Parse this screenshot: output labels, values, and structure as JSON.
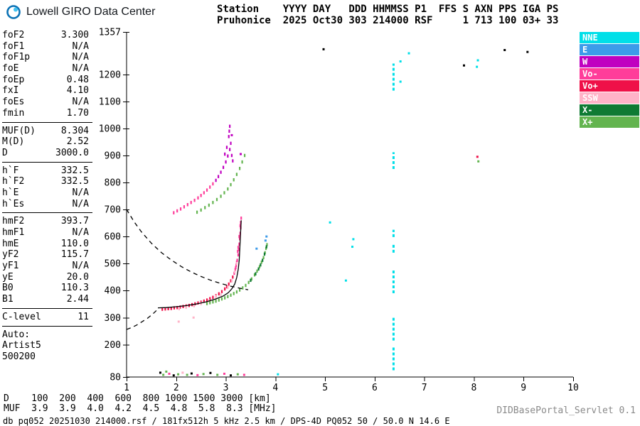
{
  "header": {
    "logo_text": "Lowell GIRO Data Center",
    "line1": "Station    YYYY DAY   DDD HHMMSS P1  FFS S AXN PPS IGA PS",
    "line2": "Pruhonice  2025 Oct30 303 214000 RSF     1 713 100 03+ 33"
  },
  "colors": {
    "NNE": "#00DFE8",
    "E": "#3D9BE9",
    "W": "#C000C0",
    "VoMinus": "#FF3D9A",
    "VoPlus": "#EF1048",
    "SSW": "#FFB3C8",
    "XMinus": "#0F7A33",
    "XPlus": "#63B44F",
    "black": "#000000"
  },
  "panel": {
    "groups": [
      {
        "rows": [
          {
            "label": "foF2",
            "value": "3.300"
          },
          {
            "label": "foF1",
            "value": "N/A"
          },
          {
            "label": "foF1p",
            "value": "N/A"
          },
          {
            "label": "foE",
            "value": "N/A"
          },
          {
            "label": "foEp",
            "value": "0.48"
          },
          {
            "label": "fxI",
            "value": "4.10"
          },
          {
            "label": "foEs",
            "value": "N/A"
          },
          {
            "label": "fmin",
            "value": "1.70"
          }
        ]
      },
      {
        "rows": [
          {
            "label": "MUF(D)",
            "value": "8.304"
          },
          {
            "label": "M(D)",
            "value": "2.52"
          },
          {
            "label": "D",
            "value": "3000.0"
          }
        ]
      },
      {
        "rows": [
          {
            "label": "h`F",
            "value": "332.5"
          },
          {
            "label": "h`F2",
            "value": "332.5"
          },
          {
            "label": "h`E",
            "value": "N/A"
          },
          {
            "label": "h`Es",
            "value": "N/A"
          }
        ]
      },
      {
        "rows": [
          {
            "label": "hmF2",
            "value": "393.7"
          },
          {
            "label": "hmF1",
            "value": "N/A"
          },
          {
            "label": "hmE",
            "value": "110.0"
          },
          {
            "label": "yF2",
            "value": "115.7"
          },
          {
            "label": "yF1",
            "value": "N/A"
          },
          {
            "label": "yE",
            "value": "20.0"
          },
          {
            "label": "B0",
            "value": "110.3"
          },
          {
            "label": "B1",
            "value": "2.44"
          }
        ]
      },
      {
        "rows": [
          {
            "label": "C-level",
            "value": "11"
          }
        ]
      },
      {
        "lines": [
          "Auto:",
          "Artist5",
          "500200"
        ]
      }
    ]
  },
  "legend": {
    "items": [
      {
        "label": "NNE",
        "color": "NNE"
      },
      {
        "label": "E",
        "color": "E"
      },
      {
        "label": "W",
        "color": "W"
      },
      {
        "label": "Vo-",
        "color": "VoMinus"
      },
      {
        "label": "Vo+",
        "color": "VoPlus"
      },
      {
        "label": "SSW",
        "color": "SSW"
      },
      {
        "label": "X-",
        "color": "XMinus"
      },
      {
        "label": "X+",
        "color": "XPlus"
      }
    ]
  },
  "chart_data": {
    "type": "scatter",
    "x_unit": "MHz",
    "y_unit": "km",
    "xlim": [
      1,
      10
    ],
    "ylim": [
      80,
      1357
    ],
    "x_ticks": [
      1,
      2,
      3,
      4,
      5,
      6,
      7,
      8,
      9,
      10
    ],
    "y_ticks": [
      1357,
      1200,
      1100,
      1000,
      900,
      800,
      700,
      600,
      500,
      400,
      300,
      200,
      80
    ],
    "grid": false,
    "legend_position": "top-right",
    "traces": [
      {
        "name": "f-o-hop1",
        "color": "VoPlus",
        "points": [
          [
            1.72,
            331
          ],
          [
            1.78,
            332
          ],
          [
            1.84,
            333
          ],
          [
            1.9,
            334
          ],
          [
            1.96,
            336
          ],
          [
            2.02,
            337
          ],
          [
            2.08,
            339
          ],
          [
            2.14,
            341
          ],
          [
            2.2,
            343
          ],
          [
            2.26,
            345
          ],
          [
            2.32,
            348
          ],
          [
            2.38,
            351
          ],
          [
            2.44,
            354
          ],
          [
            2.5,
            357
          ],
          [
            2.56,
            361
          ],
          [
            2.62,
            365
          ],
          [
            2.68,
            370
          ],
          [
            2.74,
            375
          ],
          [
            2.8,
            381
          ],
          [
            2.86,
            388
          ],
          [
            2.92,
            396
          ],
          [
            2.98,
            406
          ],
          [
            3.02,
            414
          ],
          [
            3.06,
            424
          ],
          [
            3.1,
            436
          ],
          [
            3.14,
            450
          ]
        ]
      },
      {
        "name": "f-o-cusp",
        "color": "VoMinus",
        "points": [
          [
            3.17,
            464
          ],
          [
            3.19,
            478
          ],
          [
            3.21,
            494
          ],
          [
            3.23,
            512
          ],
          [
            3.25,
            532
          ],
          [
            3.26,
            552
          ],
          [
            3.27,
            572
          ],
          [
            3.28,
            592
          ],
          [
            3.29,
            612
          ],
          [
            3.3,
            632
          ],
          [
            3.3,
            652
          ],
          [
            3.31,
            668
          ],
          [
            3.25,
            560
          ],
          [
            3.27,
            600
          ],
          [
            3.29,
            640
          ],
          [
            3.24,
            545
          ],
          [
            3.22,
            505
          ],
          [
            3.2,
            485
          ]
        ]
      },
      {
        "name": "f-o-fuzz",
        "color": "SSW",
        "points": [
          [
            2.06,
            333
          ],
          [
            2.36,
            344
          ],
          [
            2.66,
            362
          ],
          [
            2.9,
            386
          ],
          [
            3.04,
            412
          ],
          [
            3.12,
            436
          ],
          [
            3.18,
            470
          ],
          [
            3.22,
            500
          ],
          [
            2.2,
            338
          ],
          [
            2.5,
            352
          ],
          [
            2.8,
            378
          ]
        ]
      },
      {
        "name": "x-hop1",
        "color": "XPlus",
        "points": [
          [
            2.62,
            352
          ],
          [
            2.68,
            355
          ],
          [
            2.74,
            358
          ],
          [
            2.8,
            361
          ],
          [
            2.86,
            365
          ],
          [
            2.92,
            369
          ],
          [
            2.98,
            373
          ],
          [
            3.04,
            378
          ],
          [
            3.1,
            383
          ],
          [
            3.16,
            389
          ],
          [
            3.22,
            395
          ],
          [
            3.28,
            402
          ],
          [
            3.34,
            410
          ],
          [
            3.4,
            419
          ],
          [
            3.46,
            430
          ],
          [
            3.52,
            443
          ],
          [
            3.58,
            458
          ],
          [
            3.63,
            472
          ],
          [
            3.68,
            488
          ],
          [
            3.72,
            505
          ],
          [
            3.76,
            522
          ],
          [
            3.79,
            540
          ],
          [
            3.81,
            556
          ],
          [
            3.83,
            570
          ]
        ]
      },
      {
        "name": "x-hop1-dark",
        "color": "XMinus",
        "points": [
          [
            3.5,
            438
          ],
          [
            3.6,
            462
          ],
          [
            3.7,
            495
          ],
          [
            3.78,
            535
          ],
          [
            3.82,
            562
          ],
          [
            3.66,
            480
          ],
          [
            3.74,
            512
          ]
        ]
      },
      {
        "name": "o-hop2",
        "color": "VoMinus",
        "points": [
          [
            1.95,
            688
          ],
          [
            2.02,
            695
          ],
          [
            2.09,
            702
          ],
          [
            2.16,
            710
          ],
          [
            2.23,
            718
          ],
          [
            2.3,
            726
          ],
          [
            2.37,
            734
          ],
          [
            2.44,
            743
          ],
          [
            2.5,
            752
          ],
          [
            2.56,
            762
          ],
          [
            2.62,
            772
          ],
          [
            2.68,
            783
          ],
          [
            2.74,
            795
          ]
        ]
      },
      {
        "name": "o-hop2-upper",
        "color": "W",
        "points": [
          [
            2.8,
            808
          ],
          [
            2.85,
            822
          ],
          [
            2.9,
            838
          ],
          [
            2.95,
            856
          ],
          [
            3.0,
            876
          ],
          [
            3.04,
            898
          ],
          [
            3.08,
            922
          ],
          [
            3.1,
            945
          ],
          [
            3.06,
            970
          ],
          [
            3.07,
            990
          ],
          [
            3.08,
            1008
          ],
          [
            3.12,
            900
          ],
          [
            3.14,
            880
          ],
          [
            2.98,
            905
          ],
          [
            3.02,
            930
          ]
        ]
      },
      {
        "name": "x-hop2",
        "color": "XPlus",
        "points": [
          [
            2.42,
            690
          ],
          [
            2.5,
            698
          ],
          [
            2.58,
            707
          ],
          [
            2.66,
            716
          ],
          [
            2.74,
            726
          ],
          [
            2.82,
            737
          ],
          [
            2.9,
            749
          ],
          [
            2.97,
            762
          ],
          [
            3.04,
            776
          ],
          [
            3.1,
            792
          ],
          [
            3.16,
            810
          ],
          [
            3.22,
            830
          ],
          [
            3.28,
            852
          ],
          [
            3.33,
            876
          ],
          [
            3.38,
            900
          ]
        ]
      }
    ],
    "curves": [
      {
        "name": "profile",
        "style": "solid",
        "points": [
          [
            1.63,
            336
          ],
          [
            1.8,
            337
          ],
          [
            2.0,
            340
          ],
          [
            2.2,
            344
          ],
          [
            2.4,
            350
          ],
          [
            2.6,
            358
          ],
          [
            2.8,
            369
          ],
          [
            2.95,
            380
          ],
          [
            3.05,
            392
          ],
          [
            3.12,
            406
          ],
          [
            3.18,
            424
          ],
          [
            3.22,
            448
          ],
          [
            3.25,
            478
          ],
          [
            3.27,
            512
          ],
          [
            3.28,
            548
          ],
          [
            3.29,
            586
          ],
          [
            3.3,
            624
          ],
          [
            3.31,
            660
          ]
        ]
      },
      {
        "name": "muf-transmission",
        "style": "dashed",
        "points": [
          [
            1.0,
            700
          ],
          [
            1.15,
            655
          ],
          [
            1.3,
            617
          ],
          [
            1.5,
            575
          ],
          [
            1.7,
            541
          ],
          [
            1.9,
            513
          ],
          [
            2.1,
            489
          ],
          [
            2.3,
            469
          ],
          [
            2.5,
            452
          ],
          [
            2.7,
            438
          ],
          [
            2.9,
            426
          ],
          [
            3.1,
            416
          ],
          [
            3.3,
            408
          ],
          [
            3.45,
            403
          ]
        ]
      },
      {
        "name": "profile-extrapolation",
        "style": "dashed",
        "points": [
          [
            1.0,
            256
          ],
          [
            1.1,
            263
          ],
          [
            1.2,
            272
          ],
          [
            1.3,
            283
          ],
          [
            1.42,
            297
          ],
          [
            1.52,
            312
          ],
          [
            1.6,
            326
          ],
          [
            1.64,
            334
          ]
        ]
      }
    ],
    "rfi_lines": [
      {
        "f": 6.38,
        "h1": 105,
        "h2": 195
      },
      {
        "f": 6.38,
        "h1": 215,
        "h2": 300
      },
      {
        "f": 6.38,
        "h1": 390,
        "h2": 480
      },
      {
        "f": 6.38,
        "h1": 540,
        "h2": 575
      },
      {
        "f": 6.38,
        "h1": 598,
        "h2": 625
      },
      {
        "f": 6.38,
        "h1": 850,
        "h2": 912
      },
      {
        "f": 6.38,
        "h1": 1140,
        "h2": 1240
      }
    ],
    "speckles": [
      [
        1.68,
        96,
        "black"
      ],
      [
        1.74,
        88,
        "XPlus"
      ],
      [
        1.8,
        100,
        "XPlus"
      ],
      [
        1.86,
        92,
        "VoMinus"
      ],
      [
        1.95,
        86,
        "black"
      ],
      [
        2.04,
        90,
        "XPlus"
      ],
      [
        2.13,
        96,
        "SSW"
      ],
      [
        2.22,
        88,
        "XPlus"
      ],
      [
        2.31,
        93,
        "black"
      ],
      [
        2.43,
        87,
        "VoMinus"
      ],
      [
        2.55,
        91,
        "XPlus"
      ],
      [
        2.69,
        95,
        "black"
      ],
      [
        2.83,
        88,
        "XPlus"
      ],
      [
        2.97,
        92,
        "VoMinus"
      ],
      [
        3.1,
        86,
        "black"
      ],
      [
        3.24,
        90,
        "XPlus"
      ],
      [
        3.37,
        88,
        "VoMinus"
      ],
      [
        4.05,
        90,
        "NNE"
      ],
      [
        5.42,
        437,
        "NNE"
      ],
      [
        5.55,
        562,
        "NNE"
      ],
      [
        5.57,
        590,
        "NNE"
      ],
      [
        5.1,
        652,
        "NNE"
      ],
      [
        6.69,
        1278,
        "NNE"
      ],
      [
        6.52,
        1248,
        "NNE"
      ],
      [
        6.52,
        1173,
        "NNE"
      ],
      [
        8.08,
        1252,
        "NNE"
      ],
      [
        8.06,
        1228,
        "NNE"
      ],
      [
        8.62,
        1290,
        "black"
      ],
      [
        9.08,
        1283,
        "black"
      ],
      [
        7.8,
        1233,
        "black"
      ],
      [
        4.97,
        1293,
        "black"
      ],
      [
        8.07,
        895,
        "VoPlus"
      ],
      [
        8.09,
        878,
        "XPlus"
      ],
      [
        3.62,
        555,
        "E"
      ],
      [
        3.8,
        585,
        "E"
      ],
      [
        3.82,
        600,
        "E"
      ],
      [
        3.3,
        905,
        "W"
      ],
      [
        3.12,
        975,
        "W"
      ],
      [
        2.35,
        300,
        "SSW"
      ],
      [
        2.05,
        285,
        "SSW"
      ]
    ]
  },
  "bottom": {
    "d_line": "D    100  200  400  600  800 1000 1500 3000 [km]",
    "muf_line": "MUF  3.9  3.9  4.0  4.2  4.5  4.8  5.8  8.3 [MHz]",
    "status_line": "db pq052 20251030 214000.rsf / 181fx512h 5 kHz 2.5 km / DPS-4D PQ052 50 / 50.0 N 14.6 E",
    "servlet_label": "DIDBasePortal_Servlet 0.1"
  }
}
